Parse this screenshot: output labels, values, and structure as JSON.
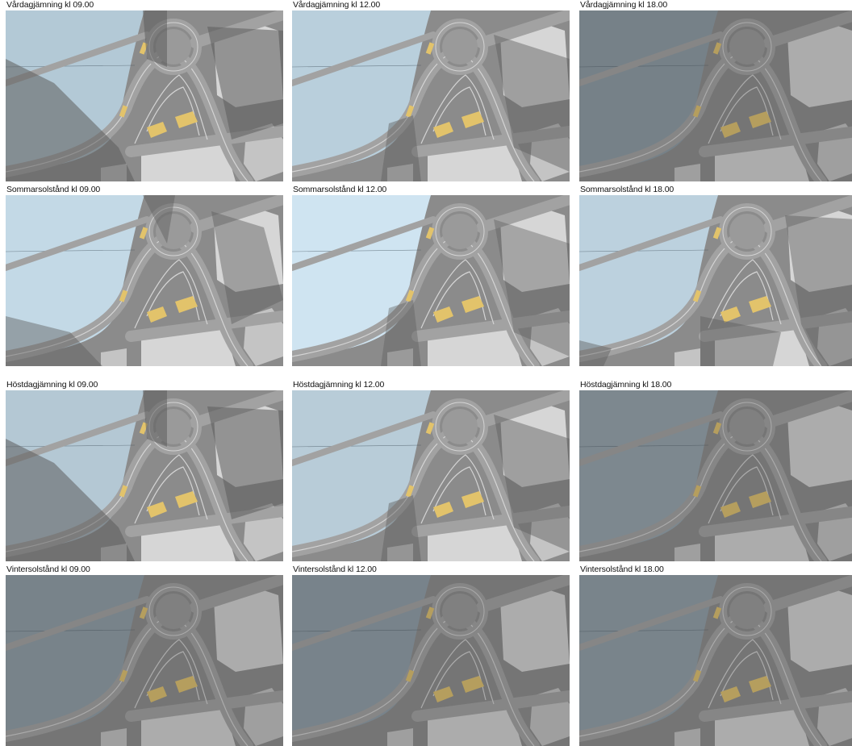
{
  "panels": [
    {
      "title": "Vårdagjämning kl 09.00",
      "water_color": "#b3c9d6",
      "shade_color": "#5d5d5d",
      "shade_opacity": 0.55,
      "shadow": "long-left"
    },
    {
      "title": "Vårdagjämning kl 12.00",
      "water_color": "#b9cfdc",
      "shade_color": "#5d5d5d",
      "shade_opacity": 0.45,
      "shadow": "short"
    },
    {
      "title": "Vårdagjämning kl 18.00",
      "water_color": "#8c9ba5",
      "shade_color": "#3f3f3f",
      "shade_opacity": 0.5,
      "shadow": "full"
    },
    {
      "title": "Sommarsolstånd kl 09.00",
      "water_color": "#c3d9e6",
      "shade_color": "#5d5d5d",
      "shade_opacity": 0.45,
      "shadow": "left"
    },
    {
      "title": "Sommarsolstånd kl 12.00",
      "water_color": "#cfe4f1",
      "shade_color": "#5d5d5d",
      "shade_opacity": 0.4,
      "shadow": "short"
    },
    {
      "title": "Sommarsolstånd kl 18.00",
      "water_color": "#bcd1de",
      "shade_color": "#5d5d5d",
      "shade_opacity": 0.45,
      "shadow": "right"
    },
    {
      "title": "Höstdagjämning kl 09.00",
      "water_color": "#b4c8d4",
      "shade_color": "#5d5d5d",
      "shade_opacity": 0.55,
      "shadow": "long-left"
    },
    {
      "title": "Höstdagjämning kl 12.00",
      "water_color": "#b8ccd8",
      "shade_color": "#5d5d5d",
      "shade_opacity": 0.45,
      "shadow": "short"
    },
    {
      "title": "Höstdagjämning kl 18.00",
      "water_color": "#95a4ae",
      "shade_color": "#3f3f3f",
      "shade_opacity": 0.5,
      "shadow": "full"
    },
    {
      "title": "Vintersolstånd kl 09.00",
      "water_color": "#8e9da7",
      "shade_color": "#3f3f3f",
      "shade_opacity": 0.5,
      "shadow": "full"
    },
    {
      "title": "Vintersolstånd kl 12.00",
      "water_color": "#8f9ea8",
      "shade_color": "#3f3f3f",
      "shade_opacity": 0.5,
      "shadow": "full"
    },
    {
      "title": "Vintersolstånd kl 18.00",
      "water_color": "#909fa9",
      "shade_color": "#3f3f3f",
      "shade_opacity": 0.5,
      "shadow": "full"
    }
  ],
  "colors": {
    "ground": "#8b8b8b",
    "road": "#a2a2a2",
    "road_line": "#d4d4d4",
    "building": "#c4c4c4",
    "building_light": "#d6d6d6",
    "proposed_building": "#e2c36b"
  }
}
